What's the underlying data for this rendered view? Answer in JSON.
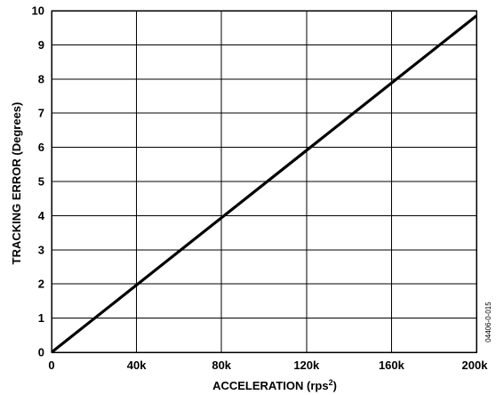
{
  "chart_data": {
    "type": "line",
    "xlabel": "ACCELERATION (rps",
    "xlabel_sup": "2",
    "xlabel_close": ")",
    "ylabel": "TRACKING ERROR (Degrees)",
    "xlim": [
      0,
      200000
    ],
    "ylim": [
      0,
      10
    ],
    "grid": true,
    "x_ticks": [
      {
        "value": 0,
        "label": "0"
      },
      {
        "value": 40000,
        "label": "40k"
      },
      {
        "value": 80000,
        "label": "80k"
      },
      {
        "value": 120000,
        "label": "120k"
      },
      {
        "value": 160000,
        "label": "160k"
      },
      {
        "value": 200000,
        "label": "200k"
      }
    ],
    "y_ticks": [
      {
        "value": 0,
        "label": "0"
      },
      {
        "value": 1,
        "label": "1"
      },
      {
        "value": 2,
        "label": "2"
      },
      {
        "value": 3,
        "label": "3"
      },
      {
        "value": 4,
        "label": "4"
      },
      {
        "value": 5,
        "label": "5"
      },
      {
        "value": 6,
        "label": "6"
      },
      {
        "value": 7,
        "label": "7"
      },
      {
        "value": 8,
        "label": "8"
      },
      {
        "value": 9,
        "label": "9"
      },
      {
        "value": 10,
        "label": "10"
      }
    ],
    "series": [
      {
        "x": [
          0,
          40000,
          80000,
          120000,
          160000,
          200000
        ],
        "y": [
          0,
          1.97,
          3.94,
          5.91,
          7.88,
          9.85
        ]
      }
    ]
  },
  "figure_id": "04406-0-015"
}
